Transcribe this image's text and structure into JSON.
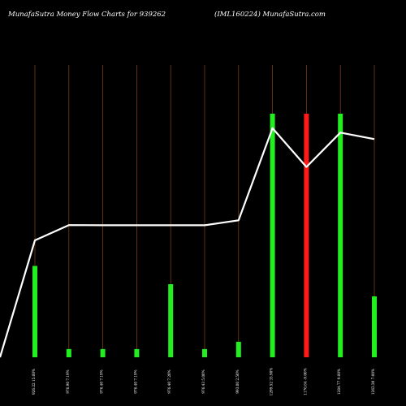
{
  "chart_data": {
    "type": "bar",
    "title_left": "MunafaSutra  Money Flow  Charts for 939262",
    "title_right": "(IML160224) MunafaSutra.com",
    "categories": [
      "926.22 15.00%",
      "976.90 7.19%",
      "976.40 7.19%",
      "976.40 7.19%",
      "976.40 7.20%",
      "976.43 5.00%",
      "993.00 2.50%",
      "1299.52 33.90%",
      "1170.64 -9.00%",
      "1284.77 9.00%",
      "1263.20 7.00%"
    ],
    "values": [
      300,
      27,
      27,
      27,
      240,
      27,
      51,
      800,
      800,
      800,
      200
    ],
    "direction": [
      "up",
      "up",
      "up",
      "up",
      "up",
      "up",
      "up",
      "up",
      "down",
      "up",
      "up"
    ],
    "line_values": [
      926.22,
      976.9,
      976.4,
      976.4,
      976.4,
      976.43,
      993.0,
      1299.52,
      1170.64,
      1284.77,
      1263.2
    ],
    "colors": {
      "up": "#22ee22",
      "down": "#ff1a1a",
      "line": "#ffffff",
      "grid": "#8b4513",
      "background": "#000000"
    }
  }
}
